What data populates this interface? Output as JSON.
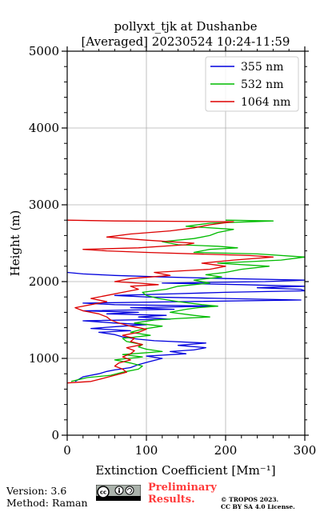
{
  "chart_data": {
    "type": "line",
    "title": "pollyxt_tjk at Dushanbe",
    "subtitle": "[Averaged] 20230524 10:24-11:59",
    "xlabel": "Extinction Coefficient [Mm⁻¹]",
    "ylabel": "Height (m)",
    "xlim": [
      0,
      300
    ],
    "ylim": [
      0,
      5000
    ],
    "xticks": [
      0,
      100,
      200,
      300
    ],
    "yticks": [
      0,
      1000,
      2000,
      3000,
      4000,
      5000
    ],
    "grid": true,
    "legend_position": "top-right",
    "series": [
      {
        "name": "355 nm",
        "color": "#0000dd",
        "points": [
          [
            10,
            700
          ],
          [
            20,
            760
          ],
          [
            40,
            800
          ],
          [
            50,
            830
          ],
          [
            60,
            850
          ],
          [
            80,
            880
          ],
          [
            90,
            920
          ],
          [
            105,
            960
          ],
          [
            120,
            1000
          ],
          [
            100,
            1030
          ],
          [
            150,
            1060
          ],
          [
            130,
            1090
          ],
          [
            160,
            1110
          ],
          [
            175,
            1140
          ],
          [
            140,
            1170
          ],
          [
            175,
            1200
          ],
          [
            110,
            1230
          ],
          [
            90,
            1250
          ],
          [
            70,
            1280
          ],
          [
            60,
            1310
          ],
          [
            40,
            1340
          ],
          [
            80,
            1360
          ],
          [
            30,
            1390
          ],
          [
            70,
            1420
          ],
          [
            100,
            1440
          ],
          [
            60,
            1460
          ],
          [
            20,
            1490
          ],
          [
            130,
            1510
          ],
          [
            90,
            1540
          ],
          [
            125,
            1560
          ],
          [
            50,
            1580
          ],
          [
            90,
            1600
          ],
          [
            20,
            1620
          ],
          [
            135,
            1640
          ],
          [
            80,
            1660
          ],
          [
            190,
            1680
          ],
          [
            60,
            1700
          ],
          [
            20,
            1720
          ],
          [
            150,
            1740
          ],
          [
            295,
            1760
          ],
          [
            200,
            1780
          ],
          [
            100,
            1800
          ],
          [
            60,
            1820
          ],
          [
            130,
            1840
          ],
          [
            200,
            1860
          ],
          [
            300,
            1880
          ],
          [
            295,
            1900
          ],
          [
            240,
            1920
          ],
          [
            300,
            1940
          ],
          [
            220,
            1960
          ],
          [
            120,
            1980
          ],
          [
            250,
            2000
          ],
          [
            300,
            2020
          ],
          [
            200,
            2040
          ],
          [
            120,
            2060
          ],
          [
            60,
            2080
          ],
          [
            20,
            2100
          ],
          [
            0,
            2120
          ]
        ]
      },
      {
        "name": "532 nm",
        "color": "#00bb00",
        "points": [
          [
            5,
            700
          ],
          [
            25,
            750
          ],
          [
            55,
            780
          ],
          [
            70,
            820
          ],
          [
            90,
            860
          ],
          [
            95,
            900
          ],
          [
            80,
            940
          ],
          [
            60,
            980
          ],
          [
            95,
            1020
          ],
          [
            70,
            1050
          ],
          [
            120,
            1090
          ],
          [
            100,
            1120
          ],
          [
            90,
            1150
          ],
          [
            95,
            1180
          ],
          [
            75,
            1220
          ],
          [
            70,
            1260
          ],
          [
            105,
            1300
          ],
          [
            80,
            1340
          ],
          [
            95,
            1380
          ],
          [
            120,
            1420
          ],
          [
            85,
            1460
          ],
          [
            110,
            1500
          ],
          [
            140,
            1520
          ],
          [
            180,
            1540
          ],
          [
            160,
            1560
          ],
          [
            130,
            1600
          ],
          [
            150,
            1640
          ],
          [
            165,
            1660
          ],
          [
            190,
            1680
          ],
          [
            170,
            1700
          ],
          [
            140,
            1740
          ],
          [
            115,
            1780
          ],
          [
            100,
            1820
          ],
          [
            95,
            1860
          ],
          [
            125,
            1900
          ],
          [
            140,
            1940
          ],
          [
            180,
            1980
          ],
          [
            160,
            2020
          ],
          [
            195,
            2060
          ],
          [
            175,
            2090
          ],
          [
            200,
            2120
          ],
          [
            220,
            2160
          ],
          [
            255,
            2200
          ],
          [
            190,
            2240
          ],
          [
            270,
            2280
          ],
          [
            300,
            2320
          ],
          [
            240,
            2360
          ],
          [
            160,
            2380
          ],
          [
            180,
            2420
          ],
          [
            215,
            2440
          ],
          [
            190,
            2460
          ],
          [
            140,
            2480
          ],
          [
            120,
            2520
          ],
          [
            160,
            2560
          ],
          [
            180,
            2600
          ],
          [
            190,
            2640
          ],
          [
            210,
            2680
          ],
          [
            150,
            2720
          ],
          [
            180,
            2760
          ],
          [
            260,
            2790
          ],
          [
            200,
            2800
          ]
        ]
      },
      {
        "name": "1064 nm",
        "color": "#dd0000",
        "points": [
          [
            0,
            680
          ],
          [
            30,
            700
          ],
          [
            45,
            740
          ],
          [
            60,
            780
          ],
          [
            75,
            820
          ],
          [
            70,
            860
          ],
          [
            60,
            900
          ],
          [
            65,
            940
          ],
          [
            80,
            980
          ],
          [
            70,
            1020
          ],
          [
            80,
            1060
          ],
          [
            85,
            1100
          ],
          [
            75,
            1140
          ],
          [
            95,
            1180
          ],
          [
            80,
            1220
          ],
          [
            85,
            1260
          ],
          [
            70,
            1300
          ],
          [
            90,
            1340
          ],
          [
            100,
            1380
          ],
          [
            80,
            1420
          ],
          [
            65,
            1460
          ],
          [
            55,
            1500
          ],
          [
            50,
            1540
          ],
          [
            40,
            1580
          ],
          [
            20,
            1620
          ],
          [
            10,
            1660
          ],
          [
            30,
            1700
          ],
          [
            50,
            1740
          ],
          [
            30,
            1780
          ],
          [
            50,
            1820
          ],
          [
            70,
            1860
          ],
          [
            90,
            1900
          ],
          [
            80,
            1940
          ],
          [
            115,
            1960
          ],
          [
            90,
            1980
          ],
          [
            60,
            2000
          ],
          [
            80,
            2040
          ],
          [
            130,
            2080
          ],
          [
            110,
            2120
          ],
          [
            180,
            2160
          ],
          [
            200,
            2200
          ],
          [
            170,
            2240
          ],
          [
            210,
            2280
          ],
          [
            260,
            2320
          ],
          [
            230,
            2340
          ],
          [
            100,
            2380
          ],
          [
            50,
            2400
          ],
          [
            20,
            2420
          ],
          [
            90,
            2440
          ],
          [
            150,
            2480
          ],
          [
            160,
            2500
          ],
          [
            100,
            2540
          ],
          [
            50,
            2580
          ],
          [
            80,
            2620
          ],
          [
            130,
            2660
          ],
          [
            160,
            2700
          ],
          [
            180,
            2740
          ],
          [
            210,
            2780
          ],
          [
            60,
            2790
          ],
          [
            0,
            2800
          ]
        ]
      }
    ]
  },
  "footer": {
    "version": "Version: 3.6",
    "method": "Method: Raman",
    "license_badge": "cc-by-sa-icon",
    "preliminary_line1": "Preliminary",
    "preliminary_line2": "Results.",
    "copyright_line1": "© TROPOS 2023.",
    "copyright_line2": "CC BY SA 4.0 License."
  }
}
